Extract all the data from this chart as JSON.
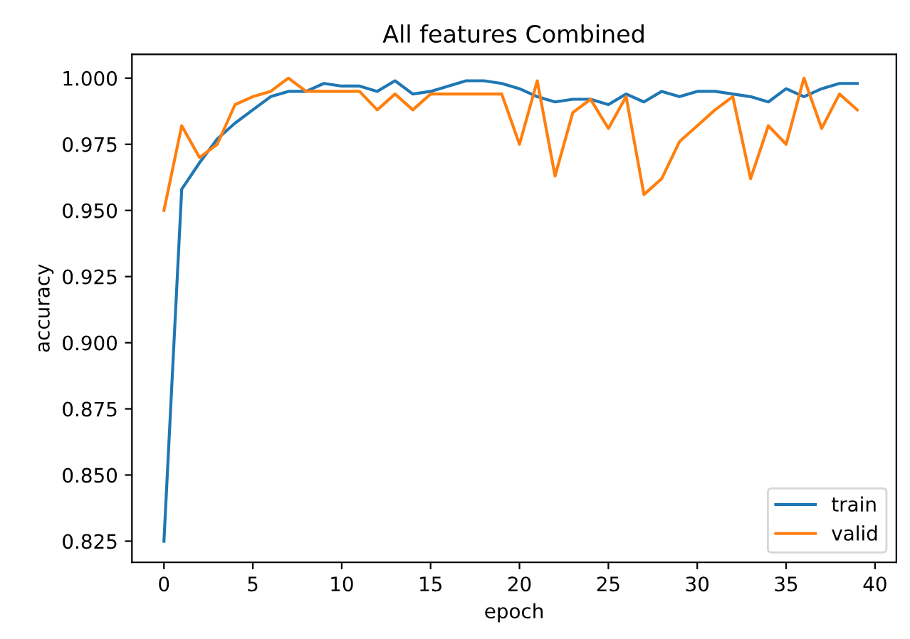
{
  "chart_data": {
    "type": "line",
    "title": "All features Combined",
    "xlabel": "epoch",
    "ylabel": "accuracy",
    "x": [
      0,
      1,
      2,
      3,
      4,
      5,
      6,
      7,
      8,
      9,
      10,
      11,
      12,
      13,
      14,
      15,
      16,
      17,
      18,
      19,
      20,
      21,
      22,
      23,
      24,
      25,
      26,
      27,
      28,
      29,
      30,
      31,
      32,
      33,
      34,
      35,
      36,
      37,
      38,
      39
    ],
    "series": [
      {
        "name": "train",
        "color": "#1f77b4",
        "values": [
          0.825,
          0.958,
          0.968,
          0.977,
          0.983,
          0.988,
          0.993,
          0.995,
          0.995,
          0.998,
          0.997,
          0.997,
          0.995,
          0.999,
          0.994,
          0.995,
          0.997,
          0.999,
          0.999,
          0.998,
          0.996,
          0.993,
          0.991,
          0.992,
          0.992,
          0.99,
          0.994,
          0.991,
          0.995,
          0.993,
          0.995,
          0.995,
          0.994,
          0.993,
          0.991,
          0.996,
          0.993,
          0.996,
          0.998,
          0.998
        ]
      },
      {
        "name": "valid",
        "color": "#ff7f0e",
        "values": [
          0.95,
          0.982,
          0.97,
          0.975,
          0.99,
          0.993,
          0.995,
          1.0,
          0.995,
          0.995,
          0.995,
          0.995,
          0.988,
          0.994,
          0.988,
          0.994,
          0.994,
          0.994,
          0.994,
          0.994,
          0.975,
          0.999,
          0.963,
          0.987,
          0.992,
          0.981,
          0.993,
          0.956,
          0.962,
          0.976,
          0.982,
          0.988,
          0.993,
          0.962,
          0.982,
          0.975,
          1.0,
          0.981,
          0.994,
          0.988
        ]
      }
    ],
    "xlim": [
      -1.8,
      41.2
    ],
    "xticks": [
      0,
      5,
      10,
      15,
      20,
      25,
      30,
      35,
      40
    ],
    "ylim": [
      0.817,
      1.009
    ],
    "yticks": [
      {
        "value": 0.825,
        "label": "0.825"
      },
      {
        "value": 0.85,
        "label": "0.850"
      },
      {
        "value": 0.875,
        "label": "0.875"
      },
      {
        "value": 0.9,
        "label": "0.900"
      },
      {
        "value": 0.925,
        "label": "0.925"
      },
      {
        "value": 0.95,
        "label": "0.950"
      },
      {
        "value": 0.975,
        "label": "0.975"
      },
      {
        "value": 1.0,
        "label": "1.000"
      }
    ],
    "legend": "bottom right",
    "grid": false
  }
}
